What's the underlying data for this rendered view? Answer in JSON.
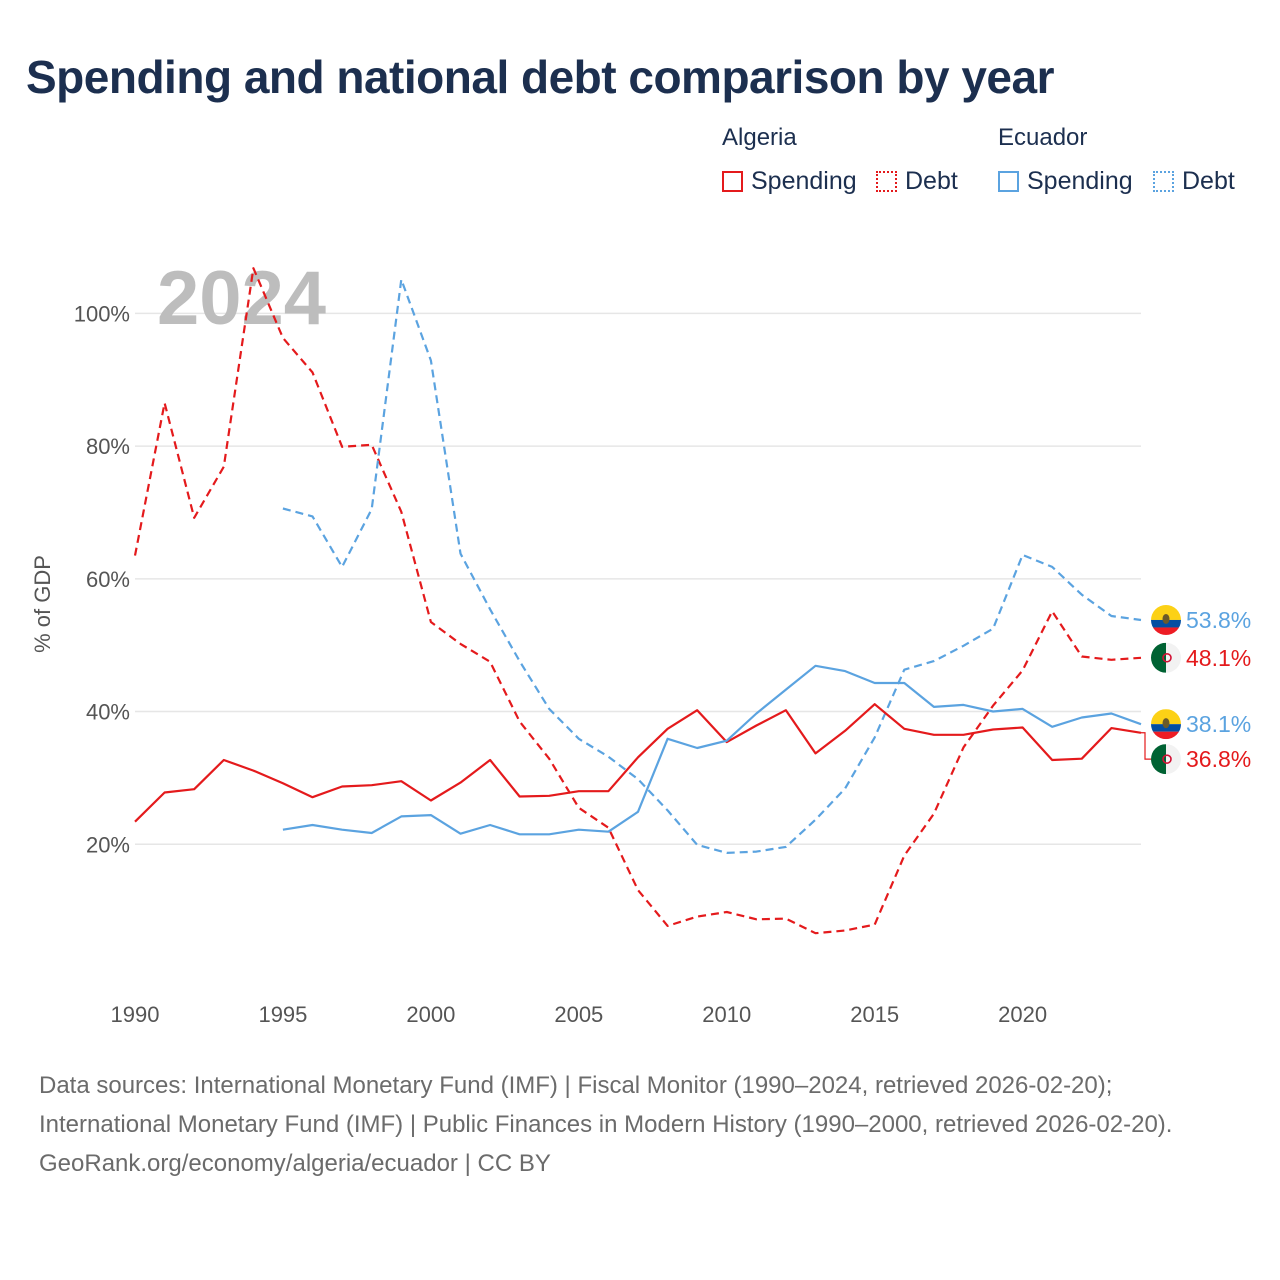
{
  "title": "Spending and national debt comparison by year",
  "legend": {
    "groups": [
      {
        "name": "Algeria",
        "color": "#e41a1c",
        "items": [
          {
            "label": "Spending",
            "style": "solid"
          },
          {
            "label": "Debt",
            "style": "dotted"
          }
        ]
      },
      {
        "name": "Ecuador",
        "color": "#5ba3e0",
        "items": [
          {
            "label": "Spending",
            "style": "solid"
          },
          {
            "label": "Debt",
            "style": "dotted"
          }
        ]
      }
    ]
  },
  "chart_data": {
    "type": "line",
    "year_label": "2024",
    "ylabel": "% of GDP",
    "xlim": [
      1990,
      2024
    ],
    "ylim": [
      0,
      110
    ],
    "x_ticks": [
      "1990",
      "1995",
      "2000",
      "2005",
      "2010",
      "2015",
      "2020"
    ],
    "y_ticks": [
      {
        "value": 20,
        "label": "20%"
      },
      {
        "value": 40,
        "label": "40%"
      },
      {
        "value": 60,
        "label": "60%"
      },
      {
        "value": 80,
        "label": "80%"
      },
      {
        "value": 100,
        "label": "100%"
      }
    ],
    "series": [
      {
        "name": "Algeria Debt",
        "country": "Algeria",
        "measure": "Debt",
        "color": "#e41a1c",
        "dashed": true,
        "end_label": "48.1%",
        "flag": "algeria",
        "x": [
          1990,
          1991,
          1992,
          1993,
          1994,
          1995,
          1996,
          1997,
          1998,
          1999,
          2000,
          2001,
          2002,
          2003,
          2004,
          2005,
          2006,
          2007,
          2008,
          2009,
          2010,
          2011,
          2012,
          2013,
          2014,
          2015,
          2016,
          2017,
          2018,
          2019,
          2020,
          2021,
          2022,
          2023,
          2024
        ],
        "values": [
          63.5,
          86.5,
          69.2,
          76.9,
          106.8,
          96.3,
          91.1,
          79.9,
          80.2,
          70.1,
          53.5,
          50.2,
          47.5,
          38.5,
          32.9,
          25.5,
          22.5,
          13.1,
          7.7,
          9.1,
          9.8,
          8.7,
          8.8,
          6.6,
          7.0,
          7.9,
          18.3,
          24.6,
          34.6,
          40.9,
          46.2,
          55.1,
          48.3,
          47.8,
          48.1
        ]
      },
      {
        "name": "Ecuador Debt",
        "country": "Ecuador",
        "measure": "Debt",
        "color": "#5ba3e0",
        "dashed": true,
        "end_label": "53.8%",
        "flag": "ecuador",
        "x": [
          1995,
          1996,
          1997,
          1998,
          1999,
          2000,
          2001,
          2002,
          2003,
          2004,
          2005,
          2006,
          2007,
          2008,
          2009,
          2010,
          2011,
          2012,
          2013,
          2014,
          2015,
          2016,
          2017,
          2018,
          2019,
          2020,
          2021,
          2022,
          2023,
          2024
        ],
        "values": [
          70.6,
          69.4,
          61.8,
          70.5,
          105.1,
          92.9,
          63.8,
          55.4,
          47.6,
          40.4,
          35.9,
          33.2,
          29.8,
          25.1,
          19.9,
          18.7,
          18.9,
          19.6,
          23.7,
          28.4,
          36.1,
          46.3,
          47.6,
          49.9,
          52.5,
          63.6,
          61.8,
          57.6,
          54.4,
          53.8
        ]
      },
      {
        "name": "Algeria Spending",
        "country": "Algeria",
        "measure": "Spending",
        "color": "#e41a1c",
        "dashed": false,
        "end_label": "36.8%",
        "flag": "algeria",
        "x": [
          1990,
          1991,
          1992,
          1993,
          1994,
          1995,
          1996,
          1997,
          1998,
          1999,
          2000,
          2001,
          2002,
          2003,
          2004,
          2005,
          2006,
          2007,
          2008,
          2009,
          2010,
          2011,
          2012,
          2013,
          2014,
          2015,
          2016,
          2017,
          2018,
          2019,
          2020,
          2021,
          2022,
          2023,
          2024
        ],
        "values": [
          23.4,
          27.8,
          28.3,
          32.7,
          31.1,
          29.2,
          27.1,
          28.7,
          28.9,
          29.5,
          26.6,
          29.3,
          32.7,
          27.2,
          27.3,
          28.0,
          28.0,
          33.1,
          37.4,
          40.2,
          35.4,
          37.9,
          40.2,
          33.7,
          37.1,
          41.1,
          37.4,
          36.5,
          36.5,
          37.3,
          37.6,
          32.7,
          32.9,
          37.5,
          36.8
        ]
      },
      {
        "name": "Ecuador Spending",
        "country": "Ecuador",
        "measure": "Spending",
        "color": "#5ba3e0",
        "dashed": false,
        "end_label": "38.1%",
        "flag": "ecuador",
        "x": [
          1995,
          1996,
          1997,
          1998,
          1999,
          2000,
          2001,
          2002,
          2003,
          2004,
          2005,
          2006,
          2007,
          2008,
          2009,
          2010,
          2011,
          2012,
          2013,
          2014,
          2015,
          2016,
          2017,
          2018,
          2019,
          2020,
          2021,
          2022,
          2023,
          2024
        ],
        "values": [
          22.2,
          22.9,
          22.2,
          21.7,
          24.2,
          24.4,
          21.6,
          22.9,
          21.5,
          21.5,
          22.2,
          21.9,
          24.9,
          35.9,
          34.5,
          35.6,
          39.7,
          43.3,
          46.9,
          46.1,
          44.3,
          44.3,
          40.7,
          41.0,
          40.0,
          40.4,
          37.7,
          39.1,
          39.7,
          38.1
        ]
      }
    ]
  },
  "footer": {
    "sources": "Data sources: International Monetary Fund (IMF) | Fiscal Monitor (1990–2024, retrieved 2026-02-20); International Monetary Fund (IMF) | Public Finances in Modern History (1990–2000, retrieved 2026-02-20).",
    "credit": "GeoRank.org/economy/algeria/ecuador | CC BY"
  }
}
